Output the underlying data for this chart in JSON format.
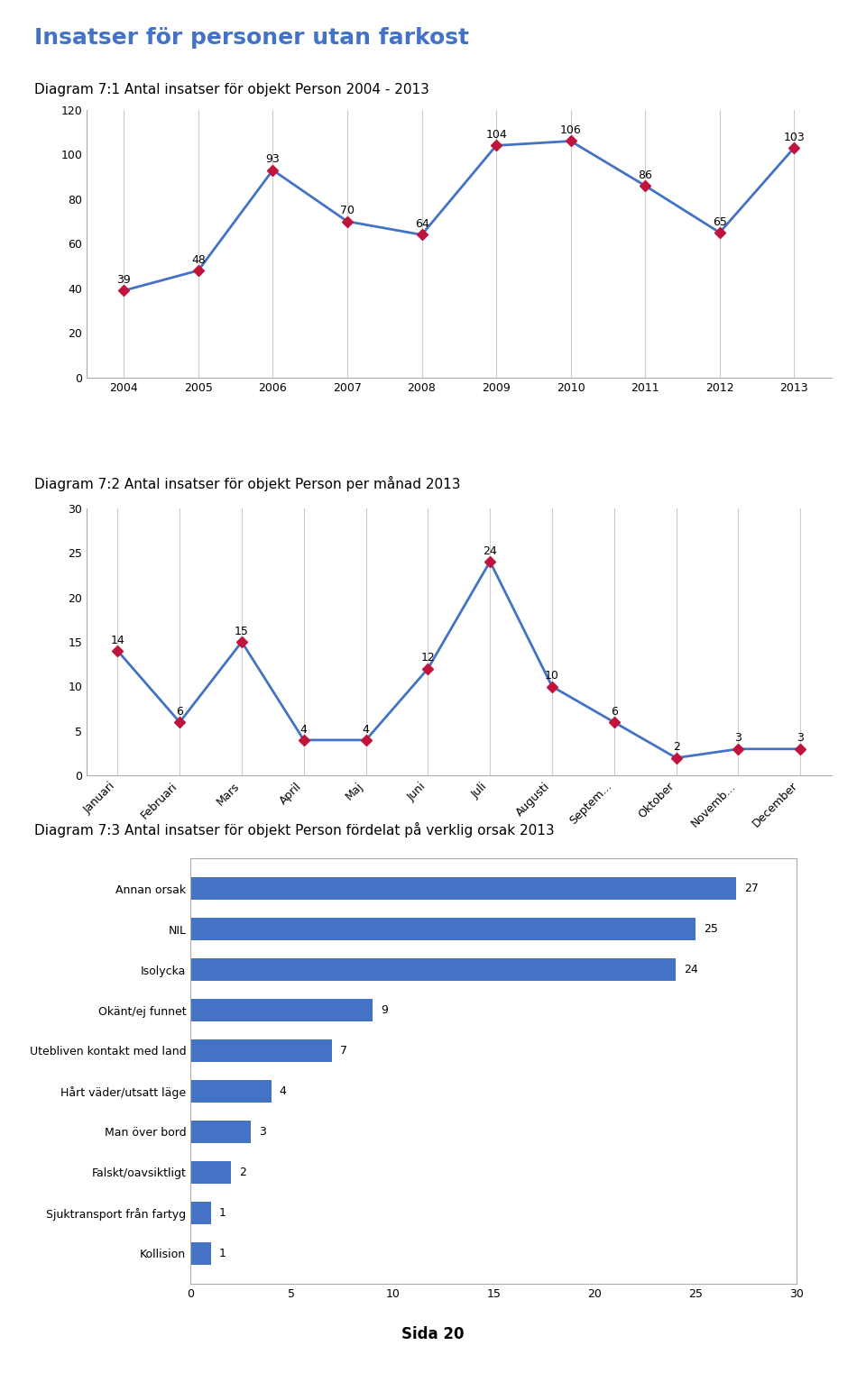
{
  "page_title": "Insatser för personer utan farkost",
  "page_title_color": "#4472c4",
  "page_title_fontsize": 18,
  "chart1_title": "Diagram 7:1 Antal insatser för objekt Person 2004 - 2013",
  "chart1_years": [
    2004,
    2005,
    2006,
    2007,
    2008,
    2009,
    2010,
    2011,
    2012,
    2013
  ],
  "chart1_values": [
    39,
    48,
    93,
    70,
    64,
    104,
    106,
    86,
    65,
    103
  ],
  "chart1_ylim": [
    0,
    120
  ],
  "chart1_yticks": [
    0,
    20,
    40,
    60,
    80,
    100,
    120
  ],
  "chart1_line_color": "#4472c4",
  "chart1_marker_color": "#c0143c",
  "chart1_marker": "D",
  "chart2_title": "Diagram 7:2 Antal insatser för objekt Person per månad 2013",
  "chart2_months": [
    "Januari",
    "Februari",
    "Mars",
    "April",
    "Maj",
    "Juni",
    "Juli",
    "Augusti",
    "Septem...",
    "Oktober",
    "Novemb...",
    "December"
  ],
  "chart2_values": [
    14,
    6,
    15,
    4,
    4,
    12,
    24,
    10,
    6,
    2,
    3,
    3
  ],
  "chart2_ylim": [
    0,
    30
  ],
  "chart2_yticks": [
    0,
    5,
    10,
    15,
    20,
    25,
    30
  ],
  "chart2_line_color": "#4472c4",
  "chart2_marker_color": "#c0143c",
  "chart2_marker": "D",
  "chart3_title": "Diagram 7:3 Antal insatser för objekt Person fördelat på verklig orsak 2013",
  "chart3_categories": [
    "Kollision",
    "Sjuktransport från fartyg",
    "Falskt/oavsiktligt",
    "Man över bord",
    "Hårt väder/utsatt läge",
    "Utebliven kontakt med land",
    "Okänt/ej funnet",
    "Isolycka",
    "NIL",
    "Annan orsak"
  ],
  "chart3_values": [
    1,
    1,
    2,
    3,
    4,
    7,
    9,
    24,
    25,
    27
  ],
  "chart3_bar_color": "#4472c4",
  "chart3_xlim": [
    0,
    30
  ],
  "chart3_xticks": [
    0,
    5,
    10,
    15,
    20,
    25,
    30
  ],
  "background_color": "#ffffff",
  "grid_color": "#cccccc",
  "tick_fontsize": 9,
  "title_fontsize": 11,
  "annotation_fontsize": 9,
  "footer_text": "Sida 20"
}
